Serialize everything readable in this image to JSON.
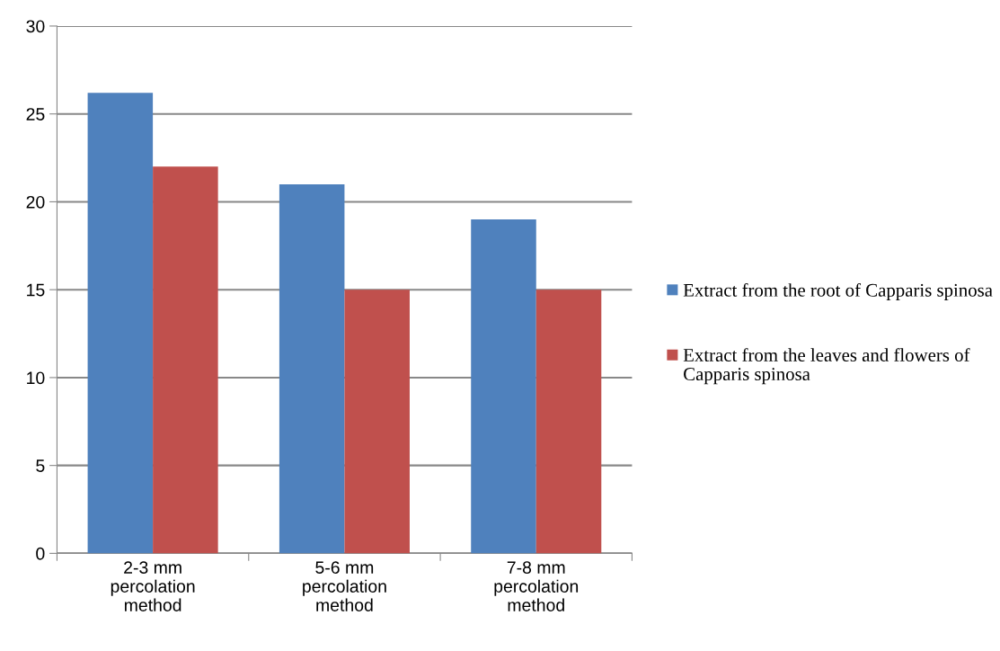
{
  "chart_data": {
    "type": "bar",
    "categories": [
      "2-3 mm percolation method",
      "5-6 mm percolation method",
      "7-8 mm percolation method"
    ],
    "series": [
      {
        "name": "Extract from the root of Capparis spinosa",
        "color": "#4f81bd",
        "values": [
          26.2,
          21,
          19
        ]
      },
      {
        "name": "Extract from the leaves and flowers of Capparis spinosa",
        "color": "#c0504d",
        "values": [
          22,
          15,
          15
        ]
      }
    ],
    "ylim": [
      0,
      30
    ],
    "yticks": [
      0,
      5,
      10,
      15,
      20,
      25,
      30
    ],
    "grid": "y",
    "legend": "right"
  }
}
